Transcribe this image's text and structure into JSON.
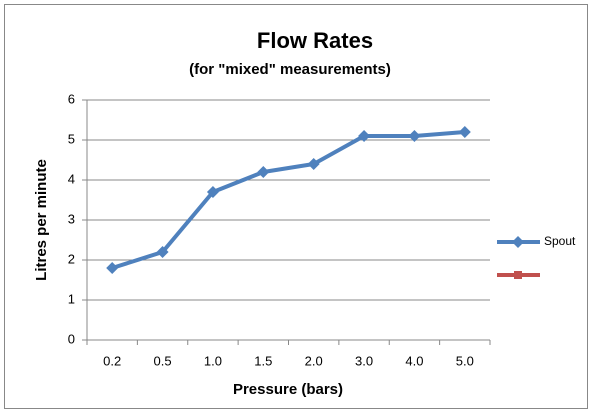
{
  "chart_data": {
    "type": "line",
    "title": "Flow Rates",
    "subtitle": "(for \"mixed\" measurements)",
    "x_label": "Pressure (bars)",
    "y_label": "Litres per minute",
    "categories": [
      "0.2",
      "0.5",
      "1.0",
      "1.5",
      "2.0",
      "3.0",
      "4.0",
      "5.0"
    ],
    "series": [
      {
        "name": "Spout",
        "color": "#4f81bd",
        "values": [
          1.8,
          2.2,
          3.7,
          4.2,
          4.4,
          5.1,
          5.1,
          5.2
        ]
      },
      {
        "name": null,
        "color": "#c0504d",
        "values": [
          null,
          null,
          null,
          null,
          null,
          null,
          null,
          null
        ]
      }
    ],
    "ylim": [
      0,
      6
    ],
    "yticks": [
      0,
      1,
      2,
      3,
      4,
      5,
      6
    ],
    "grid": true,
    "legend": "right"
  }
}
